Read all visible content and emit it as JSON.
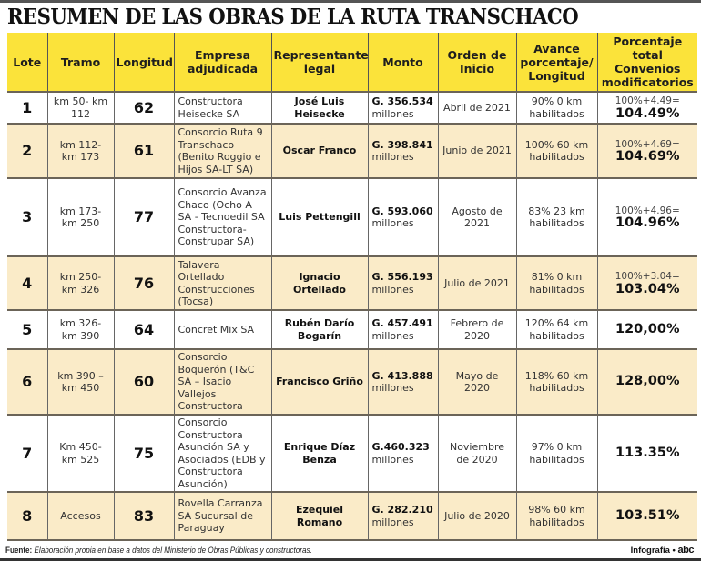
{
  "title": "RESUMEN DE LAS OBRAS DE LA RUTA TRANSCHACO",
  "colors": {
    "header_bg": "#fbe33a",
    "row_alt_bg": "#faebc8",
    "row_bg": "#ffffff",
    "border": "#6b6458"
  },
  "table": {
    "headers": [
      "Lote",
      "Tramo",
      "Longitud",
      "Empresa adjudicada",
      "Representante legal",
      "Monto",
      "Orden de Inicio",
      "Avance porcentaje/ Longitud",
      "Porcentaje total Convenios modificatorios"
    ],
    "rows": [
      {
        "lote": "1",
        "tramo": "km 50- km 112",
        "longitud": "62",
        "empresa": "Constructora Heisecke SA",
        "representante": "José Luis Heisecke",
        "monto_amount": "G. 356.534",
        "monto_unit": "millones",
        "orden": "Abril de 2021",
        "avance": "90% 0 km habilitados",
        "pct_formula": "100%+4.49=",
        "pct_total": "104.49%"
      },
      {
        "lote": "2",
        "tramo": "km 112- km 173",
        "longitud": "61",
        "empresa": "Consorcio Ruta 9 Transchaco (Benito Roggio e Hijos SA-LT SA)",
        "representante": "Óscar Franco",
        "monto_amount": "G. 398.841",
        "monto_unit": "millones",
        "orden": "Junio de 2021",
        "avance": "100% 60 km habilitados",
        "pct_formula": "100%+4.69=",
        "pct_total": "104.69%"
      },
      {
        "lote": "3",
        "tramo": "km 173- km 250",
        "longitud": "77",
        "empresa": "Consorcio Avanza Chaco (Ocho A SA - Tecnoedil SA Constructora- Construpar SA)",
        "representante": "Luis Pettengill",
        "monto_amount": "G. 593.060",
        "monto_unit": "millones",
        "orden": "Agosto de 2021",
        "avance": "83% 23 km habilitados",
        "pct_formula": "100%+4.96=",
        "pct_total": "104.96%"
      },
      {
        "lote": "4",
        "tramo": "km 250- km 326",
        "longitud": "76",
        "empresa": "Talavera Ortellado Construcciones (Tocsa)",
        "representante": "Ignacio Ortellado",
        "monto_amount": "G. 556.193",
        "monto_unit": "millones",
        "orden": "Julio de 2021",
        "avance": "81% 0 km habilitados",
        "pct_formula": "100%+3.04=",
        "pct_total": "103.04%"
      },
      {
        "lote": "5",
        "tramo": "km 326- km 390",
        "longitud": "64",
        "empresa": "Concret Mix SA",
        "representante": "Rubén Darío Bogarín",
        "monto_amount": "G. 457.491",
        "monto_unit": "millones",
        "orden": "Febrero de 2020",
        "avance": "120% 64 km habilitados",
        "pct_formula": "",
        "pct_total": "120,00%"
      },
      {
        "lote": "6",
        "tramo": "km 390 – km 450",
        "longitud": "60",
        "empresa": "Consorcio Boquerón (T&C SA – Isacio Vallejos Constructora",
        "representante": "Francisco Griño",
        "monto_amount": "G. 413.888",
        "monto_unit": "millones",
        "orden": "Mayo de 2020",
        "avance": "118% 60 km habilitados",
        "pct_formula": "",
        "pct_total": "128,00%"
      },
      {
        "lote": "7",
        "tramo": "Km 450- km 525",
        "longitud": "75",
        "empresa": "Consorcio Constructora Asunción SA y Asociados (EDB y Constructora Asunción)",
        "representante": "Enrique Díaz Benza",
        "monto_amount": "G.460.323",
        "monto_unit": "millones",
        "orden": "Noviembre de 2020",
        "avance": "97% 0 km habilitados",
        "pct_formula": "",
        "pct_total": "113.35%"
      },
      {
        "lote": "8",
        "tramo": "Accesos",
        "longitud": "83",
        "empresa": "Rovella Carranza SA Sucursal de Paraguay",
        "representante": "Ezequiel Romano",
        "monto_amount": "G. 282.210",
        "monto_unit": "millones",
        "orden": "Julio de 2020",
        "avance": "98% 60 km habilitados",
        "pct_formula": "",
        "pct_total": "103.51%"
      }
    ]
  },
  "footer": {
    "source_label": "Fuente:",
    "source_text": "Elaboración propia en base a datos del Ministerio de Obras Públicas y constructoras.",
    "credit_label": "Infografía •",
    "credit_brand": "abc"
  }
}
